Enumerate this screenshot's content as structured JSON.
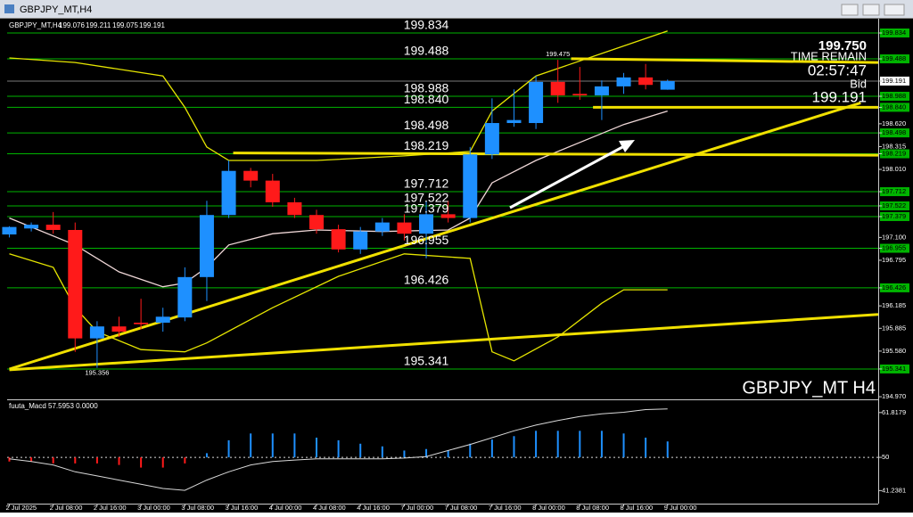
{
  "chart_data": [
    {
      "type": "candlestick",
      "title": "GBPJPY_MT,H4",
      "categories": [
        "2 Jul 2025",
        null,
        "2 Jul 08:00",
        null,
        "2 Jul 16:00",
        null,
        "3 Jul 00:00",
        null,
        "3 Jul 08:00",
        null,
        "3 Jul 16:00",
        null,
        "4 Jul 00:00",
        null,
        "4 Jul 08:00",
        null,
        "4 Jul 16:00",
        null,
        "7 Jul 00:00",
        null,
        "7 Jul 08:00",
        null,
        "7 Jul 16:00",
        null,
        "8 Jul 00:00",
        null,
        "8 Jul 08:00",
        null,
        "8 Jul 16:00",
        null,
        "9 Jul 00:00"
      ],
      "open": [
        197.14,
        197.22,
        197.27,
        197.2,
        195.75,
        195.91,
        195.96,
        195.96,
        196.03,
        196.57,
        197.4,
        197.99,
        197.86,
        197.57,
        197.4,
        197.21,
        196.94,
        197.18,
        197.3,
        197.15,
        197.41,
        197.36,
        198.21,
        198.63,
        198.63,
        199.18,
        199.02,
        199.0,
        199.12,
        199.24,
        199.076
      ],
      "high": [
        197.25,
        197.3,
        197.44,
        197.3,
        195.98,
        196.04,
        196.28,
        196.16,
        196.7,
        197.59,
        198.13,
        198.03,
        197.95,
        197.63,
        197.47,
        197.27,
        197.24,
        197.36,
        197.41,
        197.59,
        197.59,
        198.31,
        198.96,
        199.08,
        199.26,
        199.475,
        199.38,
        199.2,
        199.3,
        199.42,
        199.211
      ],
      "low": [
        197.1,
        197.18,
        197.15,
        195.57,
        195.356,
        195.77,
        195.87,
        195.84,
        195.98,
        196.25,
        197.36,
        197.77,
        197.51,
        197.36,
        197.15,
        196.9,
        196.88,
        197.12,
        197.06,
        196.82,
        197.3,
        197.3,
        198.15,
        198.58,
        198.55,
        198.9,
        198.94,
        198.67,
        199.02,
        199.08,
        199.075
      ],
      "close": [
        197.24,
        197.27,
        197.2,
        195.75,
        195.91,
        195.84,
        195.94,
        196.04,
        196.57,
        197.4,
        197.99,
        197.86,
        197.57,
        197.4,
        197.21,
        196.94,
        197.18,
        197.3,
        197.15,
        197.41,
        197.36,
        198.21,
        198.63,
        198.67,
        199.18,
        199.0,
        199.0,
        199.12,
        199.24,
        199.14,
        199.191
      ],
      "colors": {
        "up": "#1e90ff",
        "down": "#ff1a1a"
      },
      "xlim": [
        -0.1,
        39.6
      ],
      "ylim": [
        194.935,
        200.013
      ],
      "yticks": [
        199.834,
        199.488,
        199.191,
        198.988,
        {
          "value": 198.84,
          "label": "198.840"
        },
        {
          "value": 198.62,
          "label": "198.620"
        },
        198.498,
        198.315,
        198.219,
        {
          "value": 198.01,
          "label": "198.010"
        },
        197.712,
        197.522,
        197.379,
        {
          "value": 197.1,
          "label": "197.100"
        },
        196.955,
        196.795,
        196.426,
        196.185,
        195.885,
        {
          "value": 195.58,
          "label": "195.580"
        },
        195.341,
        {
          "value": 194.97,
          "label": "194.970"
        }
      ],
      "levels": [
        199.834,
        199.488,
        198.988,
        {
          "value": 198.84,
          "label": "198.840"
        },
        198.498,
        198.219,
        197.712,
        197.522,
        197.379,
        196.955,
        196.426,
        195.341
      ],
      "level_color": "#00b400",
      "bands": [
        {
          "color": "#e6e600",
          "x": [
            0,
            3,
            7,
            8,
            9,
            10,
            14,
            18,
            21,
            22,
            24,
            27,
            30
          ],
          "y": [
            199.5,
            199.44,
            199.26,
            198.84,
            198.31,
            198.13,
            198.13,
            198.19,
            198.25,
            198.79,
            199.26,
            199.56,
            199.86
          ]
        },
        {
          "color": "#e6e600",
          "x": [
            0,
            2,
            3,
            4,
            6,
            8,
            9,
            12,
            15,
            18,
            21,
            22,
            23,
            25,
            27,
            28,
            30
          ],
          "y": [
            196.88,
            196.7,
            196.16,
            195.84,
            195.6,
            195.57,
            195.69,
            196.16,
            196.58,
            196.88,
            196.82,
            195.57,
            195.45,
            195.77,
            196.22,
            196.4,
            196.4
          ]
        }
      ],
      "moving_average": {
        "color": "#f0d8d8",
        "x": [
          0,
          3,
          5,
          7,
          8,
          9,
          10,
          12,
          14,
          17,
          20,
          21,
          22,
          24,
          26,
          28,
          30
        ],
        "y": [
          197.36,
          197.0,
          196.64,
          196.44,
          196.49,
          196.7,
          197.0,
          197.15,
          197.2,
          197.18,
          197.2,
          197.36,
          197.83,
          198.13,
          198.37,
          198.61,
          198.79
        ]
      },
      "trendlines": [
        {
          "color": "#f0e000",
          "x": [
            0,
            38.8
          ],
          "y": [
            195.34,
            198.9
          ]
        },
        {
          "color": "#f0e000",
          "x": [
            0,
            39.6
          ],
          "y": [
            195.33,
            196.07
          ]
        },
        {
          "color": "#f0e000",
          "x": [
            10.2,
            39.6
          ],
          "y": [
            198.23,
            198.2
          ]
        },
        {
          "color": "#f0e000",
          "x": [
            25.6,
            39.6
          ],
          "y": [
            199.49,
            199.44
          ]
        },
        {
          "color": "#f0e000",
          "x": [
            26.6,
            39.6
          ],
          "y": [
            198.84,
            198.84
          ]
        }
      ],
      "top_price": {
        "value": 199.75,
        "label": "199.750"
      },
      "time_remain_label": "TIME REMAIN",
      "time_remain": "02:57:47",
      "bid_label": "Bid",
      "bid": 199.191,
      "watermark": "GBPJPY_MT H4"
    },
    {
      "type": "histogram",
      "title": "fuuta_Macd 57.5953 0.0000",
      "values": [
        48.9,
        48.9,
        48.4,
        48.4,
        48.4,
        48.0,
        47.3,
        47.3,
        48.4,
        51.1,
        54.5,
        56.3,
        56.3,
        56.3,
        55.2,
        54.5,
        53.6,
        52.9,
        51.8,
        52.2,
        51.8,
        53.6,
        54.7,
        55.6,
        57.0,
        57.0,
        57.0,
        57.0,
        56.3,
        55.2,
        54.2
      ],
      "signal": [
        49.6,
        48.9,
        48.0,
        46.2,
        45.1,
        44.0,
        42.9,
        41.8,
        41.3,
        44.0,
        46.2,
        48.0,
        48.9,
        49.3,
        49.6,
        49.6,
        49.6,
        49.6,
        49.8,
        50.2,
        51.8,
        53.4,
        55.2,
        57.0,
        58.5,
        59.7,
        60.8,
        61.5,
        61.9,
        62.6,
        62.8
      ],
      "baseline": 50,
      "colors": {
        "up": "#1e90ff",
        "down": "#ff1a1a"
      },
      "signal_color": "#d8d8d8",
      "ylim": [
        38.5,
        64.6
      ],
      "yticks": [
        41.2381,
        50,
        61.8179
      ]
    }
  ]
}
